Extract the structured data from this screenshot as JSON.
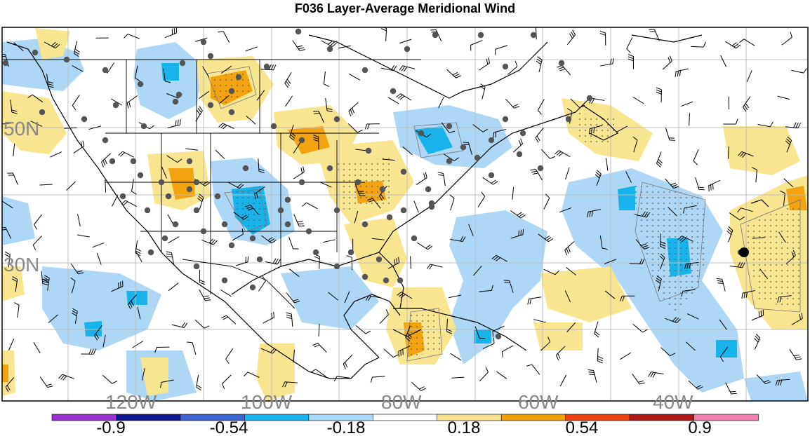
{
  "title": "F036 Layer-Average Meridional Wind",
  "lat_labels": [
    "50N",
    "30N"
  ],
  "lon_labels": [
    "120W",
    "100W",
    "80W",
    "60W",
    "40W"
  ],
  "colorbar": {
    "ticks": [
      "-0.9",
      "-0.54",
      "-0.18",
      "0.18",
      "0.54",
      "0.9"
    ],
    "colors": [
      "#9b30d0",
      "#101690",
      "#3c64d2",
      "#1ab4f0",
      "#aad8f8",
      "#ffffff",
      "#f8e290",
      "#f0a000",
      "#ee4010",
      "#b01818",
      "#f080b0"
    ]
  },
  "colors": {
    "light_blue": "#aed6f5",
    "mid_blue": "#19b3ec",
    "light_yellow": "#f8e590",
    "orange": "#f2a30f",
    "grid": "#bdbdbd",
    "station": "#555555",
    "marker": "#000000"
  }
}
